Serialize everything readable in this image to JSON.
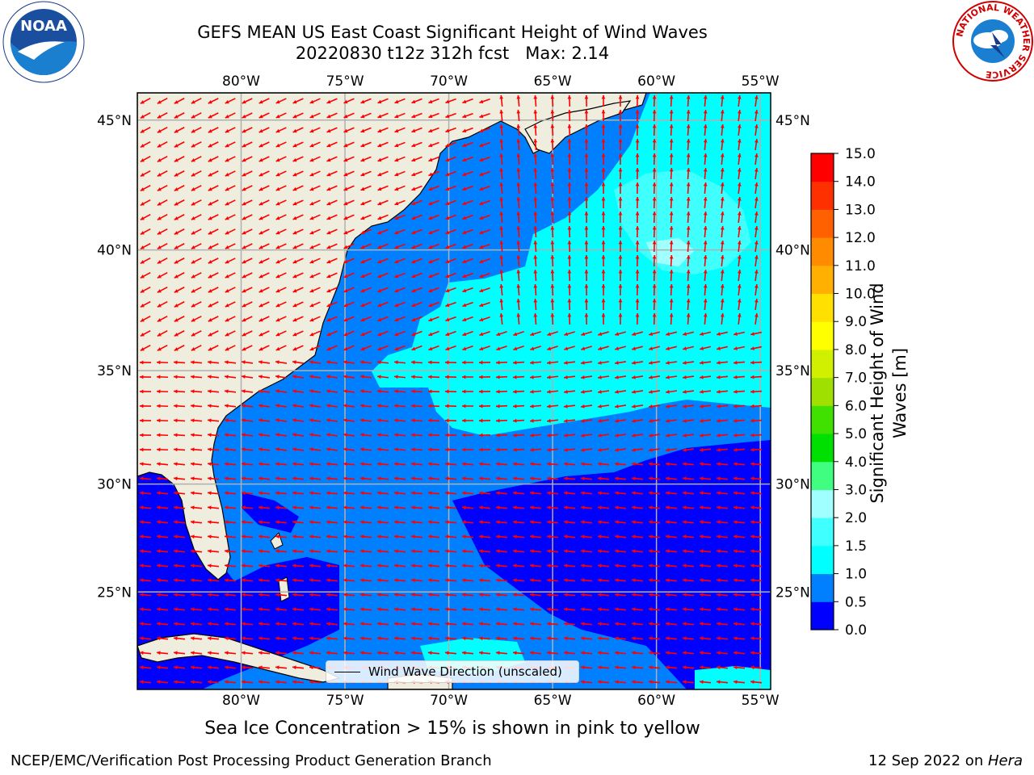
{
  "title_line1": "GEFS MEAN US East Coast Significant Height of Wind Waves",
  "title_line2": "20220830 t12z 312h fcst   Max: 2.14",
  "logos": {
    "noaa_text": "NOAA",
    "nws_ring_text": "NATIONAL WEATHER SERVICE"
  },
  "map": {
    "lon_labels": [
      "80°W",
      "75°W",
      "70°W",
      "65°W",
      "60°W",
      "55°W"
    ],
    "lat_labels": [
      "45°N",
      "40°N",
      "35°N",
      "30°N",
      "25°N"
    ],
    "lon_values": [
      -80,
      -75,
      -70,
      -65,
      -60,
      -55
    ],
    "lat_values": [
      45,
      40,
      35,
      30,
      25
    ],
    "lon_range": [
      -85,
      -54.5
    ],
    "lat_range": [
      20.3,
      46
    ],
    "grid": true,
    "ocean_color": "#0080ff",
    "land_color": "#efedde",
    "arrow_color": "#ff0000"
  },
  "colorbar": {
    "label_line1": "Significant Height of Wind",
    "label_line2": "Waves [m]",
    "ticks": [
      "0.0",
      "0.5",
      "1.0",
      "1.5",
      "2.0",
      "3.0",
      "4.0",
      "5.0",
      "6.0",
      "7.0",
      "8.0",
      "9.0",
      "10.0",
      "11.0",
      "12.0",
      "13.0",
      "14.0",
      "15.0"
    ],
    "colors": [
      "#0000ff",
      "#0080ff",
      "#00ffff",
      "#40ffff",
      "#a0ffff",
      "#40ff80",
      "#00e000",
      "#40e000",
      "#a0e000",
      "#d0f000",
      "#ffff00",
      "#ffe000",
      "#ffb000",
      "#ff8c00",
      "#ff6000",
      "#ff3000",
      "#ff0000"
    ]
  },
  "legend_text": "Wind Wave Direction (unscaled)",
  "ice_note": "Sea Ice Concentration > 15% is shown in pink to yellow",
  "footer_left": "NCEP/EMC/Verification Post Processing Product Generation Branch",
  "footer_right_date": "12 Sep 2022 on ",
  "footer_right_host": "Hera"
}
